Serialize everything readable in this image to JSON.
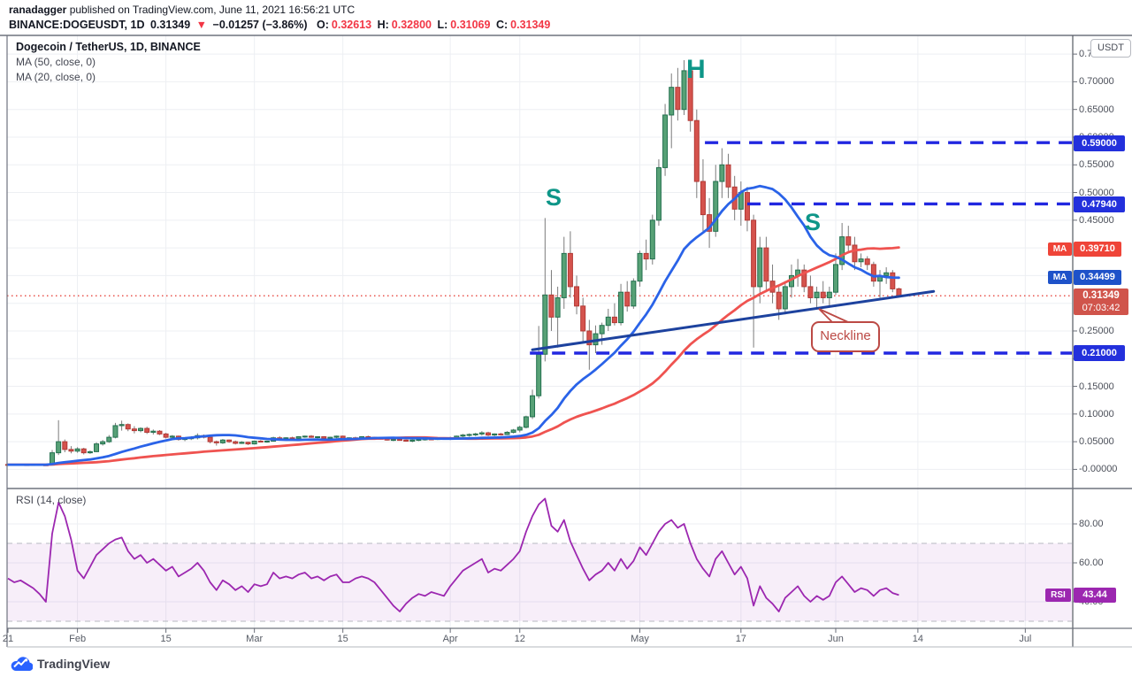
{
  "header": {
    "user": "ranadagger",
    "line1_rest": " published on TradingView.com, June 11, 2021 16:56:21 UTC",
    "symbol": "BINANCE:DOGEUSDT, 1D",
    "price": "0.31349",
    "arrow": "▼",
    "change": "−0.01257 (−3.86%)",
    "o_label": "O:",
    "o_val": "0.32613",
    "h_label": "H:",
    "h_val": "0.32800",
    "l_label": "L:",
    "l_val": "0.31069",
    "c_label": "C:",
    "c_val": "0.31349"
  },
  "legend": {
    "title": "Dogecoin / TetherUS, 1D, BINANCE",
    "ma50_row": "MA (50, close, 0)",
    "ma20_row": "MA (20, close, 0)",
    "rsi_row": "RSI (14, close)"
  },
  "annotations": {
    "head": "H",
    "left_shoulder": "S",
    "right_shoulder": "S",
    "neckline_label": "Neckline"
  },
  "axis": {
    "currency_button": "USDT",
    "price_ticks": [
      {
        "label": "0.75000",
        "value": 0.75
      },
      {
        "label": "0.70000",
        "value": 0.7
      },
      {
        "label": "0.65000",
        "value": 0.65
      },
      {
        "label": "0.60000",
        "value": 0.6
      },
      {
        "label": "0.55000",
        "value": 0.55
      },
      {
        "label": "0.50000",
        "value": 0.5
      },
      {
        "label": "0.45000",
        "value": 0.45
      },
      {
        "label": "0.25000",
        "value": 0.25
      },
      {
        "label": "0.20000",
        "value": 0.2
      },
      {
        "label": "0.15000",
        "value": 0.15
      },
      {
        "label": "0.10000",
        "value": 0.1
      },
      {
        "label": "0.05000",
        "value": 0.05
      },
      {
        "label": "-0.00000",
        "value": 0.0
      }
    ],
    "rsi_ticks": [
      {
        "label": "80.00",
        "value": 80
      },
      {
        "label": "60.00",
        "value": 60
      },
      {
        "label": "40.00",
        "value": 40
      }
    ],
    "time_ticks": [
      {
        "label": "21",
        "day": 0
      },
      {
        "label": "Feb",
        "day": 11
      },
      {
        "label": "15",
        "day": 25
      },
      {
        "label": "Mar",
        "day": 39
      },
      {
        "label": "15",
        "day": 53
      },
      {
        "label": "Apr",
        "day": 70
      },
      {
        "label": "12",
        "day": 81
      },
      {
        "label": "May",
        "day": 100
      },
      {
        "label": "17",
        "day": 116
      },
      {
        "label": "Jun",
        "day": 131
      },
      {
        "label": "14",
        "day": 144
      },
      {
        "label": "Jul",
        "day": 161
      }
    ],
    "badges": {
      "ma50_chip": "MA",
      "ma50_value": "0.39710",
      "ma20_chip": "MA",
      "ma20_value": "0.34499",
      "last_price": "0.31349",
      "countdown": "07:03:42",
      "rsi_chip": "RSI",
      "rsi_value": "43.44"
    },
    "level_labels": [
      "0.59000",
      "0.47940",
      "0.21000"
    ]
  },
  "watermark": "TradingView",
  "colors": {
    "grid": "#edeff3",
    "border": "#6f737e",
    "axis_line": "#555962",
    "up_body": "#57a176",
    "up_border": "#23704f",
    "down_body": "#d5534d",
    "down_border": "#b23a36",
    "wick": "#7b7b7b",
    "ma20": "#2a63e8",
    "ma50": "#ef5350",
    "neckline": "#1d429e",
    "level_dash": "#2127e0",
    "level_box": "#2330dc",
    "last_dotted": "#e8544d",
    "rsi_line": "#9c27b0",
    "rsi_band": "rgba(156,39,176,0.08)",
    "rsi_band_edge": "#b7bac2",
    "chip_red": "#ef4438",
    "chip_blue": "#1e52c9",
    "hs_letters": "#0e9688",
    "tv_blue": "#2962ff"
  },
  "chart_data": {
    "type": "candlestick_with_rsi",
    "title": "Dogecoin / TetherUS, 1D, BINANCE",
    "start_date": "2021-01-21",
    "interval": "1D",
    "price_axis_range": [
      0.0,
      0.78
    ],
    "rsi_axis_range": [
      26,
      98
    ],
    "ma_periods": [
      50,
      20
    ],
    "ma_seed_price": 0.0085,
    "last_close": 0.31349,
    "ohlc": [
      [
        0.0089,
        0.0095,
        0.008,
        0.0086
      ],
      [
        0.0086,
        0.0091,
        0.0081,
        0.0088
      ],
      [
        0.0088,
        0.0093,
        0.0083,
        0.0085
      ],
      [
        0.0085,
        0.009,
        0.0079,
        0.0083
      ],
      [
        0.0083,
        0.0089,
        0.0078,
        0.0086
      ],
      [
        0.0086,
        0.009,
        0.008,
        0.0082
      ],
      [
        0.0082,
        0.0086,
        0.0074,
        0.0077
      ],
      [
        0.0077,
        0.035,
        0.0072,
        0.03
      ],
      [
        0.03,
        0.0888,
        0.026,
        0.05
      ],
      [
        0.05,
        0.054,
        0.031,
        0.036
      ],
      [
        0.036,
        0.042,
        0.029,
        0.033
      ],
      [
        0.033,
        0.04,
        0.03,
        0.037
      ],
      [
        0.037,
        0.039,
        0.027,
        0.03
      ],
      [
        0.03,
        0.034,
        0.028,
        0.032
      ],
      [
        0.032,
        0.049,
        0.031,
        0.046
      ],
      [
        0.046,
        0.053,
        0.043,
        0.05
      ],
      [
        0.05,
        0.062,
        0.048,
        0.058
      ],
      [
        0.058,
        0.084,
        0.056,
        0.079
      ],
      [
        0.079,
        0.088,
        0.07,
        0.081
      ],
      [
        0.081,
        0.083,
        0.069,
        0.073
      ],
      [
        0.073,
        0.078,
        0.065,
        0.07
      ],
      [
        0.07,
        0.076,
        0.067,
        0.074
      ],
      [
        0.074,
        0.077,
        0.064,
        0.067
      ],
      [
        0.067,
        0.072,
        0.063,
        0.069
      ],
      [
        0.069,
        0.071,
        0.062,
        0.064
      ],
      [
        0.064,
        0.066,
        0.056,
        0.058
      ],
      [
        0.058,
        0.062,
        0.054,
        0.06
      ],
      [
        0.06,
        0.061,
        0.052,
        0.054
      ],
      [
        0.054,
        0.058,
        0.051,
        0.056
      ],
      [
        0.056,
        0.06,
        0.053,
        0.057
      ],
      [
        0.057,
        0.065,
        0.054,
        0.061
      ],
      [
        0.061,
        0.063,
        0.056,
        0.058
      ],
      [
        0.058,
        0.06,
        0.047,
        0.05
      ],
      [
        0.05,
        0.052,
        0.043,
        0.048
      ],
      [
        0.048,
        0.055,
        0.046,
        0.053
      ],
      [
        0.053,
        0.054,
        0.048,
        0.05
      ],
      [
        0.05,
        0.052,
        0.045,
        0.047
      ],
      [
        0.047,
        0.051,
        0.046,
        0.049
      ],
      [
        0.049,
        0.05,
        0.044,
        0.046
      ],
      [
        0.046,
        0.052,
        0.045,
        0.051
      ],
      [
        0.051,
        0.053,
        0.049,
        0.05
      ],
      [
        0.05,
        0.052,
        0.048,
        0.051
      ],
      [
        0.051,
        0.059,
        0.05,
        0.057
      ],
      [
        0.057,
        0.06,
        0.054,
        0.056
      ],
      [
        0.056,
        0.058,
        0.054,
        0.057
      ],
      [
        0.057,
        0.059,
        0.055,
        0.056
      ],
      [
        0.056,
        0.06,
        0.055,
        0.059
      ],
      [
        0.059,
        0.061,
        0.057,
        0.06
      ],
      [
        0.06,
        0.062,
        0.057,
        0.058
      ],
      [
        0.058,
        0.06,
        0.056,
        0.059
      ],
      [
        0.059,
        0.06,
        0.055,
        0.056
      ],
      [
        0.056,
        0.059,
        0.055,
        0.058
      ],
      [
        0.058,
        0.061,
        0.056,
        0.06
      ],
      [
        0.06,
        0.061,
        0.055,
        0.056
      ],
      [
        0.056,
        0.058,
        0.054,
        0.057
      ],
      [
        0.057,
        0.059,
        0.055,
        0.056
      ],
      [
        0.056,
        0.06,
        0.055,
        0.059
      ],
      [
        0.059,
        0.061,
        0.057,
        0.058
      ],
      [
        0.058,
        0.059,
        0.055,
        0.056
      ],
      [
        0.056,
        0.058,
        0.054,
        0.055
      ],
      [
        0.055,
        0.056,
        0.052,
        0.053
      ],
      [
        0.053,
        0.055,
        0.051,
        0.054
      ],
      [
        0.054,
        0.056,
        0.052,
        0.053
      ],
      [
        0.053,
        0.054,
        0.05,
        0.051
      ],
      [
        0.051,
        0.054,
        0.049,
        0.053
      ],
      [
        0.053,
        0.055,
        0.051,
        0.054
      ],
      [
        0.054,
        0.056,
        0.052,
        0.055
      ],
      [
        0.055,
        0.056,
        0.053,
        0.054
      ],
      [
        0.054,
        0.057,
        0.053,
        0.056
      ],
      [
        0.056,
        0.058,
        0.054,
        0.055
      ],
      [
        0.055,
        0.059,
        0.053,
        0.057
      ],
      [
        0.057,
        0.061,
        0.056,
        0.06
      ],
      [
        0.06,
        0.064,
        0.058,
        0.062
      ],
      [
        0.062,
        0.065,
        0.059,
        0.063
      ],
      [
        0.063,
        0.066,
        0.06,
        0.064
      ],
      [
        0.064,
        0.069,
        0.061,
        0.066
      ],
      [
        0.066,
        0.068,
        0.06,
        0.062
      ],
      [
        0.062,
        0.065,
        0.06,
        0.064
      ],
      [
        0.064,
        0.066,
        0.061,
        0.063
      ],
      [
        0.063,
        0.069,
        0.062,
        0.067
      ],
      [
        0.067,
        0.073,
        0.065,
        0.071
      ],
      [
        0.071,
        0.079,
        0.067,
        0.076
      ],
      [
        0.076,
        0.097,
        0.074,
        0.095
      ],
      [
        0.095,
        0.144,
        0.091,
        0.133
      ],
      [
        0.133,
        0.259,
        0.128,
        0.208
      ],
      [
        0.208,
        0.454,
        0.195,
        0.315
      ],
      [
        0.315,
        0.36,
        0.25,
        0.275
      ],
      [
        0.275,
        0.33,
        0.22,
        0.31
      ],
      [
        0.31,
        0.42,
        0.29,
        0.39
      ],
      [
        0.39,
        0.43,
        0.31,
        0.33
      ],
      [
        0.33,
        0.35,
        0.28,
        0.295
      ],
      [
        0.295,
        0.31,
        0.23,
        0.25
      ],
      [
        0.25,
        0.27,
        0.18,
        0.225
      ],
      [
        0.225,
        0.26,
        0.21,
        0.245
      ],
      [
        0.245,
        0.265,
        0.225,
        0.26
      ],
      [
        0.26,
        0.29,
        0.25,
        0.275
      ],
      [
        0.275,
        0.3,
        0.26,
        0.265
      ],
      [
        0.265,
        0.335,
        0.26,
        0.32
      ],
      [
        0.32,
        0.34,
        0.285,
        0.295
      ],
      [
        0.295,
        0.345,
        0.29,
        0.34
      ],
      [
        0.34,
        0.395,
        0.33,
        0.39
      ],
      [
        0.39,
        0.415,
        0.36,
        0.38
      ],
      [
        0.38,
        0.46,
        0.37,
        0.45
      ],
      [
        0.45,
        0.56,
        0.44,
        0.545
      ],
      [
        0.545,
        0.66,
        0.53,
        0.64
      ],
      [
        0.64,
        0.715,
        0.58,
        0.69
      ],
      [
        0.69,
        0.725,
        0.63,
        0.65
      ],
      [
        0.65,
        0.739,
        0.64,
        0.72
      ],
      [
        0.72,
        0.735,
        0.61,
        0.63
      ],
      [
        0.63,
        0.65,
        0.49,
        0.52
      ],
      [
        0.52,
        0.56,
        0.43,
        0.46
      ],
      [
        0.46,
        0.49,
        0.4,
        0.43
      ],
      [
        0.43,
        0.55,
        0.42,
        0.52
      ],
      [
        0.52,
        0.58,
        0.49,
        0.55
      ],
      [
        0.55,
        0.57,
        0.49,
        0.51
      ],
      [
        0.51,
        0.53,
        0.45,
        0.47
      ],
      [
        0.47,
        0.52,
        0.44,
        0.5
      ],
      [
        0.5,
        0.51,
        0.43,
        0.45
      ],
      [
        0.45,
        0.46,
        0.22,
        0.33
      ],
      [
        0.33,
        0.42,
        0.3,
        0.4
      ],
      [
        0.4,
        0.42,
        0.32,
        0.34
      ],
      [
        0.34,
        0.37,
        0.3,
        0.32
      ],
      [
        0.32,
        0.33,
        0.27,
        0.29
      ],
      [
        0.29,
        0.34,
        0.28,
        0.33
      ],
      [
        0.33,
        0.37,
        0.31,
        0.35
      ],
      [
        0.35,
        0.38,
        0.33,
        0.36
      ],
      [
        0.36,
        0.37,
        0.32,
        0.33
      ],
      [
        0.33,
        0.35,
        0.3,
        0.31
      ],
      [
        0.31,
        0.33,
        0.29,
        0.32
      ],
      [
        0.32,
        0.34,
        0.3,
        0.31
      ],
      [
        0.31,
        0.33,
        0.295,
        0.32
      ],
      [
        0.32,
        0.39,
        0.315,
        0.37
      ],
      [
        0.37,
        0.445,
        0.36,
        0.42
      ],
      [
        0.42,
        0.44,
        0.39,
        0.405
      ],
      [
        0.405,
        0.42,
        0.36,
        0.375
      ],
      [
        0.375,
        0.39,
        0.365,
        0.38
      ],
      [
        0.38,
        0.385,
        0.36,
        0.37
      ],
      [
        0.37,
        0.375,
        0.33,
        0.34
      ],
      [
        0.34,
        0.36,
        0.31,
        0.35
      ],
      [
        0.35,
        0.365,
        0.335,
        0.355
      ],
      [
        0.355,
        0.36,
        0.32,
        0.326
      ],
      [
        0.3261,
        0.328,
        0.3107,
        0.3135
      ]
    ],
    "rsi": [
      52,
      50,
      51,
      49,
      47,
      44,
      40,
      75,
      91,
      84,
      72,
      56,
      52,
      58,
      64,
      67,
      70,
      72,
      73,
      66,
      62,
      64,
      60,
      62,
      59,
      56,
      58,
      53,
      55,
      57,
      60,
      56,
      50,
      46,
      51,
      49,
      46,
      48,
      45,
      49,
      48,
      49,
      55,
      52,
      53,
      52,
      54,
      55,
      52,
      53,
      51,
      53,
      54,
      50,
      50,
      52,
      53,
      52,
      50,
      46,
      42,
      38,
      35,
      39,
      42,
      44,
      43,
      45,
      44,
      43,
      48,
      52,
      56,
      58,
      60,
      62,
      55,
      57,
      56,
      59,
      62,
      66,
      76,
      84,
      90,
      93,
      79,
      76,
      82,
      71,
      64,
      57,
      51,
      54,
      56,
      60,
      56,
      62,
      57,
      61,
      68,
      64,
      70,
      76,
      80,
      82,
      78,
      80,
      70,
      62,
      57,
      53,
      62,
      66,
      60,
      54,
      58,
      52,
      38,
      48,
      42,
      39,
      35,
      42,
      45,
      48,
      43,
      40,
      43,
      41,
      43,
      50,
      53,
      49,
      45,
      47,
      46,
      43,
      46,
      47,
      44.5,
      43.44
    ],
    "rsi_band": [
      30,
      70
    ],
    "rsi_current": 43.44,
    "ma50_current": 0.3971,
    "ma20_current": 0.34499,
    "levels": [
      {
        "price": 0.59,
        "start_day": 110.3,
        "label": "0.59000"
      },
      {
        "price": 0.4794,
        "start_day": 117.0,
        "label": "0.47940"
      },
      {
        "price": 0.21,
        "start_day": 82.6,
        "label": "0.21000"
      }
    ],
    "neckline": {
      "day1": 83,
      "price1": 0.216,
      "day2": 146.5,
      "price2": 0.3215
    },
    "head_day": 107,
    "left_shoulder_day": 85,
    "right_shoulder_day": 132
  }
}
